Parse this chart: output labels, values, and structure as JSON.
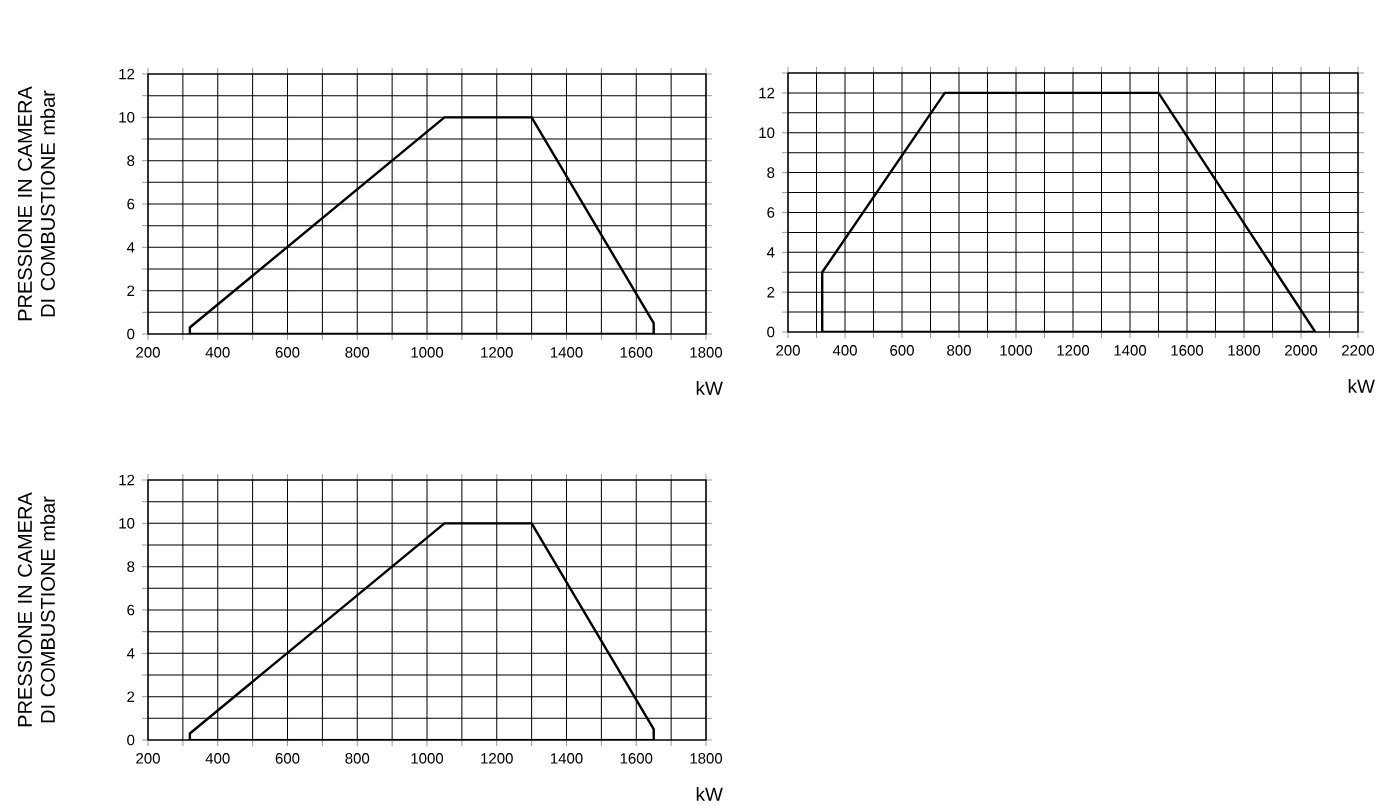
{
  "chart_data": [
    {
      "type": "line",
      "ylabel": "PRESSIONE IN CAMERA DI COMBUSTIONE mbar",
      "xlabel": "kW",
      "grid": true,
      "marker": "none",
      "xlim": [
        200,
        1800
      ],
      "ylim": [
        0,
        12
      ],
      "xticks": [
        200,
        {
          "value": 300,
          "label": null
        },
        400,
        {
          "value": 500,
          "label": null
        },
        600,
        {
          "value": 700,
          "label": null
        },
        800,
        {
          "value": 900,
          "label": null
        },
        1000,
        {
          "value": 1100,
          "label": null
        },
        1200,
        {
          "value": 1300,
          "label": null
        },
        1400,
        {
          "value": 1500,
          "label": null
        },
        1600,
        {
          "value": 1700,
          "label": null
        },
        1800
      ],
      "yticks": [
        0,
        {
          "value": 1,
          "label": null
        },
        2,
        {
          "value": 3,
          "label": null
        },
        4,
        {
          "value": 5,
          "label": null
        },
        6,
        {
          "value": 7,
          "label": null
        },
        8,
        {
          "value": 9,
          "label": null
        },
        10,
        {
          "value": 11,
          "label": null
        },
        12
      ],
      "series": [
        {
          "color": "#000000",
          "x": [
            320,
            320,
            1050,
            1300,
            1650,
            1650
          ],
          "values": [
            0,
            0.3,
            10,
            10,
            0.5,
            0
          ]
        },
        {
          "color": "#000000",
          "x": [
            320,
            1650
          ],
          "values": [
            0,
            0
          ]
        }
      ]
    },
    {
      "type": "line",
      "xlabel": "kW",
      "grid": true,
      "marker": "none",
      "xlim": [
        200,
        2200
      ],
      "ylim": [
        0,
        13
      ],
      "xticks": [
        200,
        {
          "value": 300,
          "label": null
        },
        400,
        {
          "value": 500,
          "label": null
        },
        600,
        {
          "value": 700,
          "label": null
        },
        800,
        {
          "value": 900,
          "label": null
        },
        1000,
        {
          "value": 1100,
          "label": null
        },
        1200,
        {
          "value": 1300,
          "label": null
        },
        1400,
        {
          "value": 1500,
          "label": null
        },
        1600,
        {
          "value": 1700,
          "label": null
        },
        1800,
        {
          "value": 1900,
          "label": null
        },
        2000,
        {
          "value": 2100,
          "label": null
        },
        2200
      ],
      "yticks": [
        0,
        {
          "value": 1,
          "label": null
        },
        2,
        {
          "value": 3,
          "label": null
        },
        4,
        {
          "value": 5,
          "label": null
        },
        6,
        {
          "value": 7,
          "label": null
        },
        8,
        {
          "value": 9,
          "label": null
        },
        10,
        {
          "value": 11,
          "label": null
        },
        12,
        {
          "value": 13,
          "label": null
        }
      ],
      "series": [
        {
          "color": "#000000",
          "x": [
            320,
            320,
            750,
            1500,
            2050
          ],
          "values": [
            0,
            3,
            12,
            12,
            0
          ]
        },
        {
          "color": "#000000",
          "x": [
            320,
            2050
          ],
          "values": [
            0,
            0
          ]
        }
      ]
    },
    {
      "type": "line",
      "ylabel": "PRESSIONE IN CAMERA DI COMBUSTIONE mbar",
      "xlabel": "kW",
      "grid": true,
      "marker": "none",
      "xlim": [
        200,
        1800
      ],
      "ylim": [
        0,
        12
      ],
      "xticks": [
        200,
        {
          "value": 300,
          "label": null
        },
        400,
        {
          "value": 500,
          "label": null
        },
        600,
        {
          "value": 700,
          "label": null
        },
        800,
        {
          "value": 900,
          "label": null
        },
        1000,
        {
          "value": 1100,
          "label": null
        },
        1200,
        {
          "value": 1300,
          "label": null
        },
        1400,
        {
          "value": 1500,
          "label": null
        },
        1600,
        {
          "value": 1700,
          "label": null
        },
        1800
      ],
      "yticks": [
        0,
        {
          "value": 1,
          "label": null
        },
        2,
        {
          "value": 3,
          "label": null
        },
        4,
        {
          "value": 5,
          "label": null
        },
        6,
        {
          "value": 7,
          "label": null
        },
        8,
        {
          "value": 9,
          "label": null
        },
        10,
        {
          "value": 11,
          "label": null
        },
        12
      ],
      "series": [
        {
          "color": "#000000",
          "x": [
            320,
            320,
            1050,
            1300,
            1650,
            1650
          ],
          "values": [
            0,
            0.3,
            10,
            10,
            0.5,
            0
          ]
        },
        {
          "color": "#000000",
          "x": [
            320,
            1650
          ],
          "values": [
            0,
            0
          ]
        }
      ]
    }
  ]
}
